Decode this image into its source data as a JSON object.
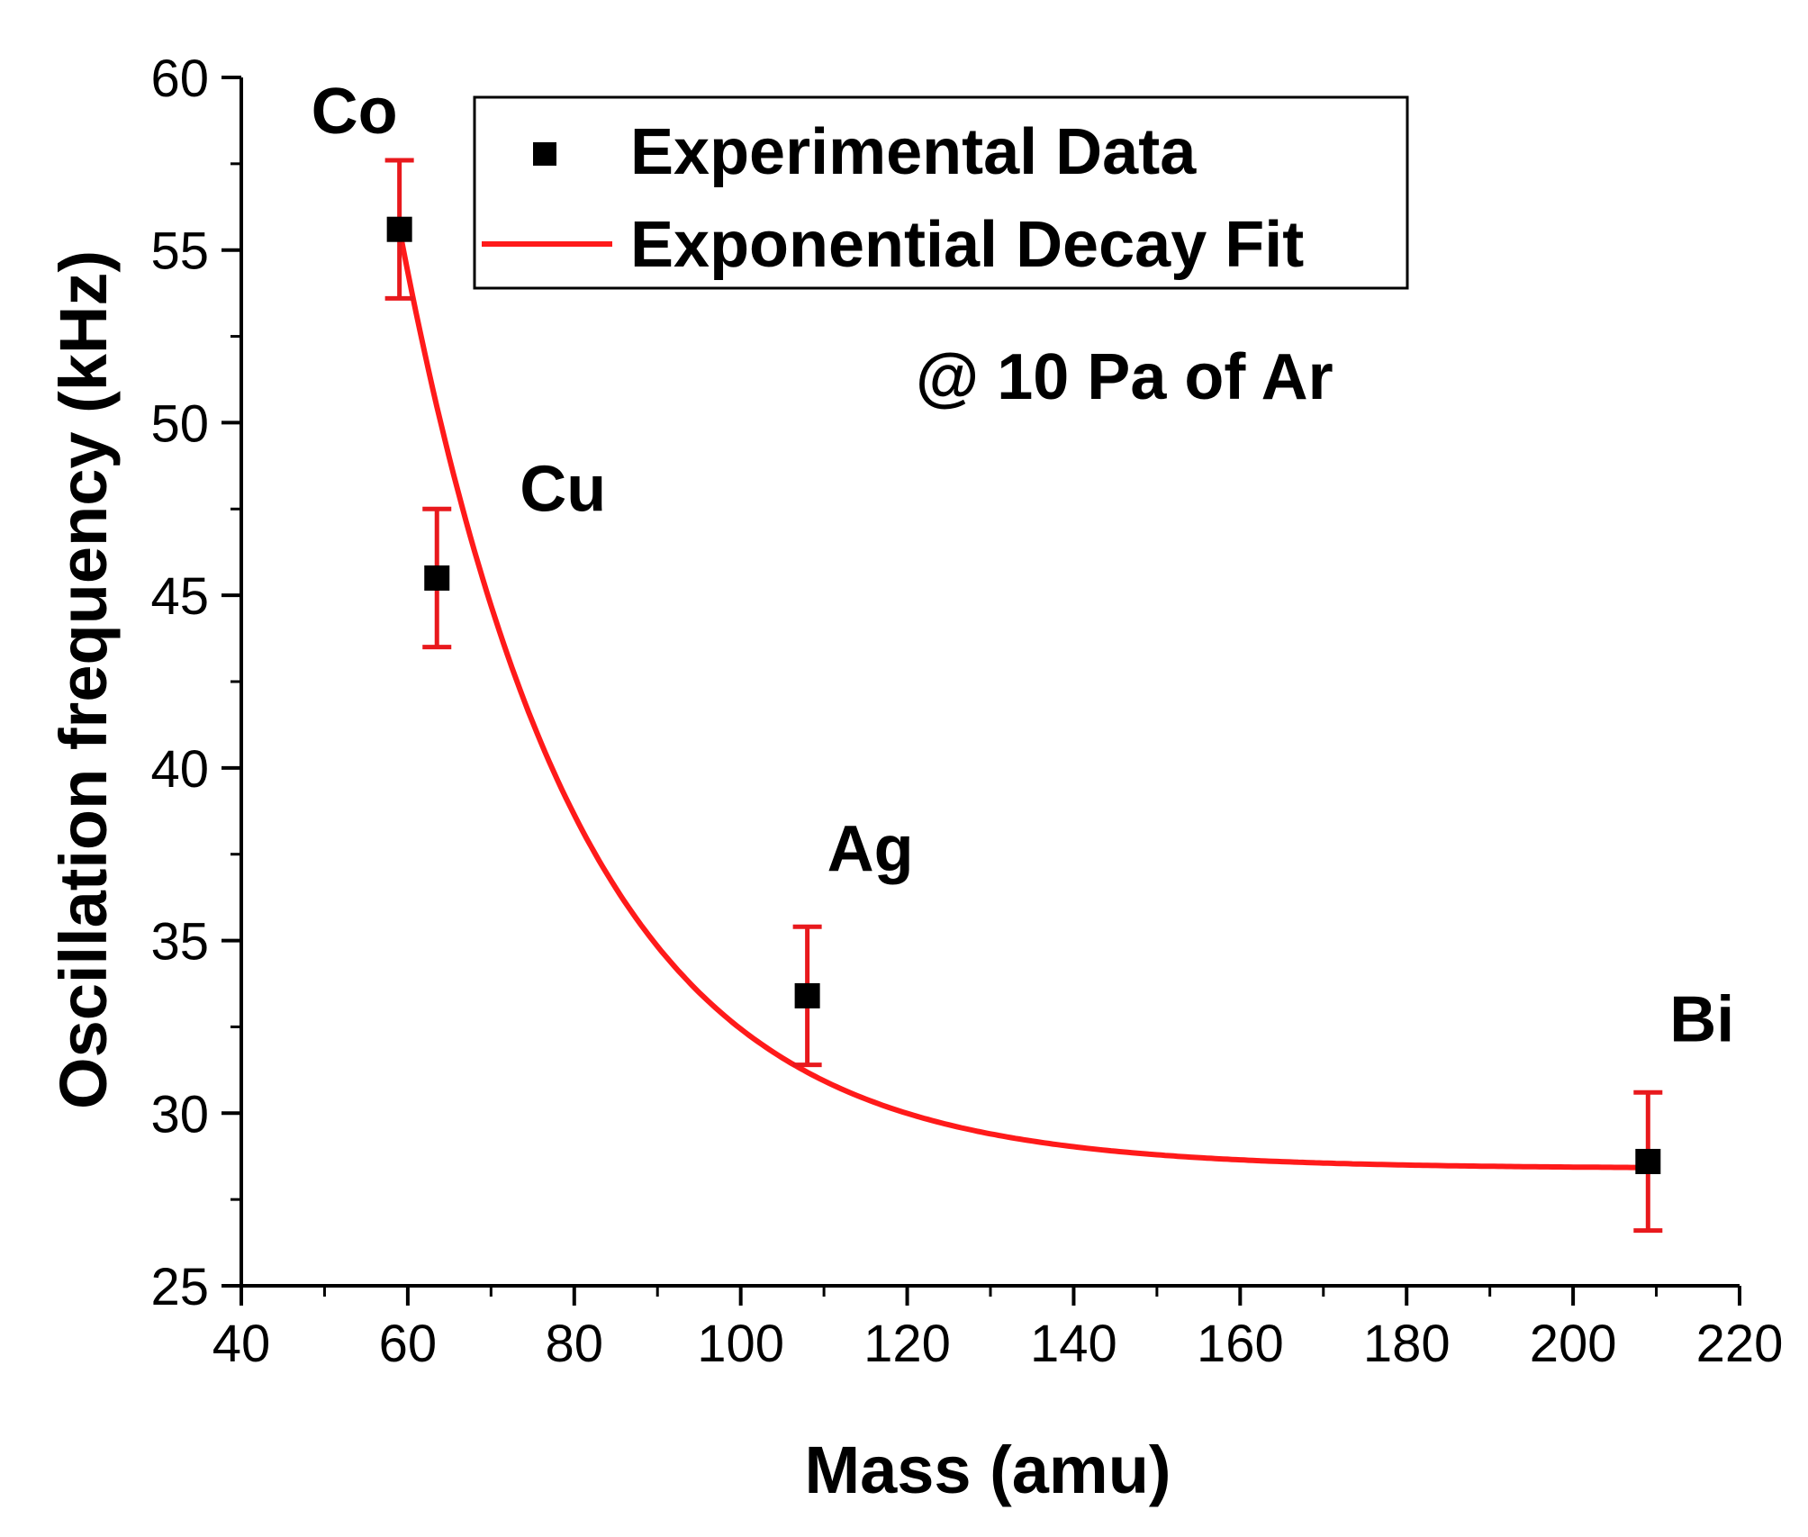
{
  "chart_data": {
    "type": "scatter",
    "xlabel": "Mass (amu)",
    "ylabel": "Oscillation frequency (kHz)",
    "xlim": [
      40,
      220
    ],
    "ylim": [
      25,
      60
    ],
    "x_ticks": [
      40,
      60,
      80,
      100,
      120,
      140,
      160,
      180,
      200,
      220
    ],
    "y_ticks": [
      25,
      30,
      35,
      40,
      45,
      50,
      55,
      60
    ],
    "grid": false,
    "legend_position": "top-right",
    "annotation": "@ 10 Pa of Ar",
    "series": [
      {
        "name": "Experimental Data",
        "kind": "points-with-error-bars",
        "marker": "square",
        "color": "#000000",
        "error_color": "#e8191d",
        "points": [
          {
            "label": "Co",
            "x": 59,
            "y": 55.6,
            "err": 2.0
          },
          {
            "label": "Cu",
            "x": 63.5,
            "y": 45.5,
            "err": 2.0
          },
          {
            "label": "Ag",
            "x": 108,
            "y": 33.4,
            "err": 2.0
          },
          {
            "label": "Bi",
            "x": 209,
            "y": 28.6,
            "err": 2.0
          }
        ]
      },
      {
        "name": "Exponential Decay Fit",
        "kind": "line",
        "color": "#ff1a1a",
        "model": {
          "y0": 28.4,
          "A": 27.2,
          "x0": 59,
          "t": 21.5
        },
        "x_range": [
          59,
          209
        ]
      }
    ]
  }
}
